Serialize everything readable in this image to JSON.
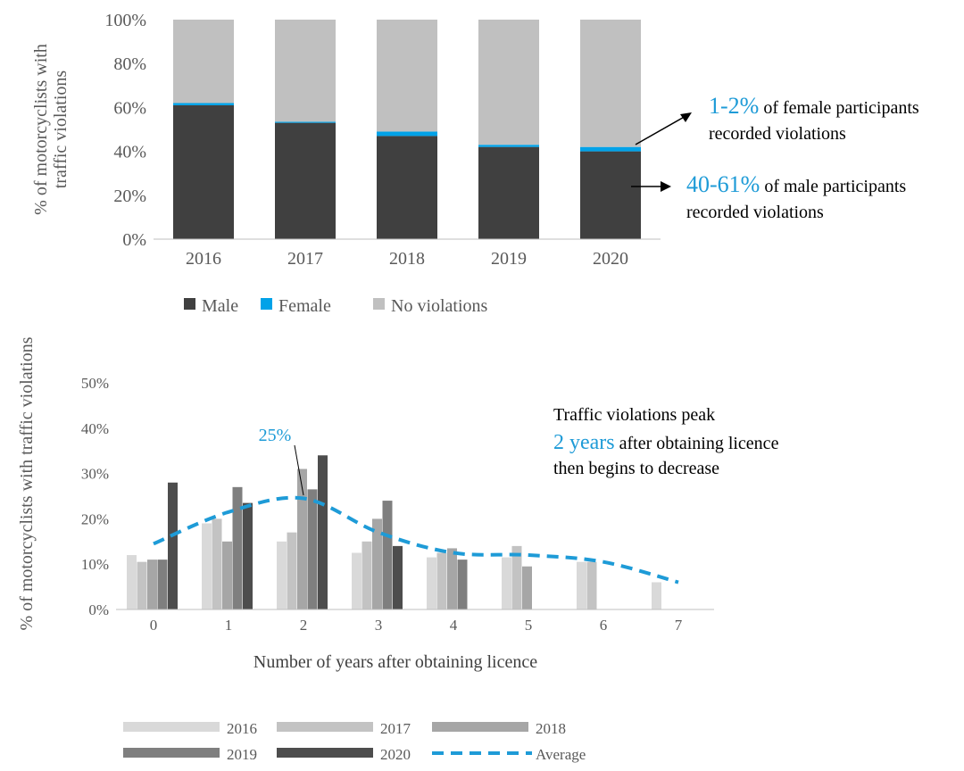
{
  "colors": {
    "male": "#404040",
    "female": "#00a2e8",
    "no_violations": "#c0c0c0",
    "accent": "#1e9bd7",
    "axis": "#bfbfbf",
    "text": "#595959",
    "y2016": "#d9d9d9",
    "y2017": "#c3c3c3",
    "y2018": "#a6a6a6",
    "y2019": "#7f7f7f",
    "y2020": "#4d4d4d"
  },
  "chart_data": [
    {
      "type": "bar",
      "stacked": true,
      "ylabel": "% of motorcyclists with traffic violations",
      "ylim": [
        0,
        100
      ],
      "yticks": [
        "0%",
        "20%",
        "40%",
        "60%",
        "80%",
        "100%"
      ],
      "categories": [
        "2016",
        "2017",
        "2018",
        "2019",
        "2020"
      ],
      "series": [
        {
          "name": "Male",
          "values": [
            61,
            53,
            47,
            42,
            40
          ]
        },
        {
          "name": "Female",
          "values": [
            1,
            0.5,
            2,
            1,
            2
          ]
        },
        {
          "name": "No violations",
          "values": [
            38,
            46.5,
            51,
            57,
            58
          ]
        }
      ],
      "legend": [
        "Male",
        "Female",
        "No violations"
      ],
      "annotations": [
        {
          "highlight": "1-2%",
          "line1_rest": " of female participants",
          "line2": "recorded violations"
        },
        {
          "highlight": "40-61%",
          "line1_rest": " of male participants",
          "line2": "recorded violations"
        }
      ]
    },
    {
      "type": "bar",
      "ylabel": "% of motorcyclists with traffic violations",
      "xlabel": "Number of years after obtaining licence",
      "ylim": [
        0,
        50
      ],
      "yticks": [
        "0%",
        "10%",
        "20%",
        "30%",
        "40%",
        "50%"
      ],
      "categories": [
        "0",
        "1",
        "2",
        "3",
        "4",
        "5",
        "6",
        "7"
      ],
      "series": [
        {
          "name": "2016",
          "values": [
            12,
            19,
            15,
            12.5,
            11.5,
            11.5,
            10.5,
            6
          ]
        },
        {
          "name": "2017",
          "values": [
            10.5,
            20,
            17,
            15,
            12.5,
            14,
            10.5,
            null
          ]
        },
        {
          "name": "2018",
          "values": [
            11,
            15,
            31,
            20,
            13.5,
            9.5,
            null,
            null
          ]
        },
        {
          "name": "2019",
          "values": [
            11,
            27,
            26.5,
            24,
            11,
            null,
            null,
            null
          ]
        },
        {
          "name": "2020",
          "values": [
            28,
            23.5,
            34,
            14,
            null,
            null,
            null,
            null
          ]
        }
      ],
      "average": {
        "name": "Average",
        "values": [
          14.5,
          21.5,
          24.5,
          17,
          12.5,
          12,
          10.5,
          6
        ]
      },
      "peak_label": "25%",
      "annotation": {
        "line1": "Traffic violations peak",
        "highlight": "2 years",
        "line2_rest": " after obtaining licence",
        "line3": "then begins to decrease"
      },
      "legend": [
        "2016",
        "2017",
        "2018",
        "2019",
        "2020",
        "Average"
      ]
    }
  ]
}
